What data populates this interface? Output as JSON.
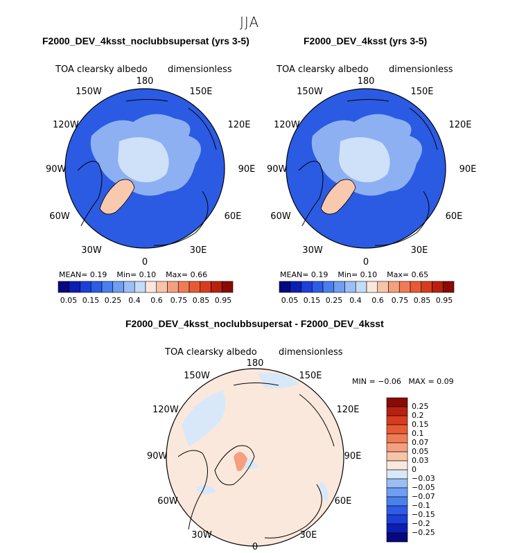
{
  "page": {
    "suptitle": "JJA"
  },
  "panels": [
    {
      "title": "F2000_DEV_4ksst_noclubbsupersat (yrs 3-5)",
      "var_label": "TOA clearsky albedo",
      "units_label": "dimensionless",
      "stats": {
        "mean_label": "MEAN=",
        "mean": "0.19",
        "min_label": "Min=",
        "min": "0.10",
        "max_label": "Max=",
        "max": "0.66"
      }
    },
    {
      "title": "F2000_DEV_4ksst (yrs 3-5)",
      "var_label": "TOA clearsky albedo",
      "units_label": "dimensionless",
      "stats": {
        "mean_label": "MEAN=",
        "mean": "0.19",
        "min_label": "Min=",
        "min": "0.10",
        "max_label": "Max=",
        "max": "0.65"
      }
    },
    {
      "title": "F2000_DEV_4ksst_noclubbsupersat - F2000_DEV_4ksst",
      "var_label": "TOA clearsky albedo",
      "units_label": "dimensionless",
      "stats": {
        "min_label": "MIN =",
        "min": "−0.06",
        "max_label": "MAX =",
        "max": "0.09"
      }
    }
  ],
  "lon_labels": [
    "180",
    "150E",
    "120E",
    "90E",
    "60E",
    "30E",
    "0",
    "30W",
    "60W",
    "90W",
    "120W",
    "150W"
  ],
  "colorbar_abs": {
    "ticks": [
      "0.05",
      "0.15",
      "0.25",
      "0.4",
      "0.6",
      "0.75",
      "0.85",
      "0.95"
    ],
    "colors": [
      "#08087e",
      "#0b1fb3",
      "#1c3fd8",
      "#2d5ce6",
      "#4a7fee",
      "#6f9ef2",
      "#9bbef4",
      "#c5dcf7",
      "#fbe8dc",
      "#f7c4a8",
      "#f4a07e",
      "#f07c56",
      "#e85a34",
      "#d73c1e",
      "#b9200f",
      "#8a0a04"
    ]
  },
  "colorbar_diff": {
    "ticks": [
      "0.25",
      "0.2",
      "0.15",
      "0.1",
      "0.07",
      "0.05",
      "0.03",
      "0",
      "−0.03",
      "−0.05",
      "−0.07",
      "−0.1",
      "−0.15",
      "−0.2",
      "−0.25"
    ],
    "colors": [
      "#8a0a04",
      "#b9200f",
      "#d73c1e",
      "#e85a34",
      "#f07c56",
      "#f4a07e",
      "#f7c4a8",
      "#fbe8dc",
      "#d8e8f8",
      "#9bbef4",
      "#6f9ef2",
      "#4a7fee",
      "#2d5ce6",
      "#1c3fd8",
      "#0b1fb3",
      "#08087e"
    ]
  },
  "chart_data": [
    {
      "type": "heatmap",
      "projection": "north-polar-stereographic",
      "title": "F2000_DEV_4ksst_noclubbsupersat (yrs 3-5)",
      "variable": "TOA clearsky albedo",
      "units": "dimensionless",
      "mean": 0.19,
      "min": 0.1,
      "max": 0.66,
      "levels": [
        0.05,
        0.1,
        0.15,
        0.2,
        0.25,
        0.3,
        0.4,
        0.5,
        0.6,
        0.7,
        0.75,
        0.8,
        0.85,
        0.9,
        0.95
      ]
    },
    {
      "type": "heatmap",
      "projection": "north-polar-stereographic",
      "title": "F2000_DEV_4ksst (yrs 3-5)",
      "variable": "TOA clearsky albedo",
      "units": "dimensionless",
      "mean": 0.19,
      "min": 0.1,
      "max": 0.65,
      "levels": [
        0.05,
        0.1,
        0.15,
        0.2,
        0.25,
        0.3,
        0.4,
        0.5,
        0.6,
        0.7,
        0.75,
        0.8,
        0.85,
        0.9,
        0.95
      ]
    },
    {
      "type": "heatmap",
      "projection": "north-polar-stereographic",
      "title": "F2000_DEV_4ksst_noclubbsupersat - F2000_DEV_4ksst",
      "variable": "TOA clearsky albedo",
      "units": "dimensionless",
      "min": -0.06,
      "max": 0.09,
      "levels": [
        -0.25,
        -0.2,
        -0.15,
        -0.1,
        -0.07,
        -0.05,
        -0.03,
        0,
        0.03,
        0.05,
        0.07,
        0.1,
        0.15,
        0.2,
        0.25
      ]
    }
  ]
}
